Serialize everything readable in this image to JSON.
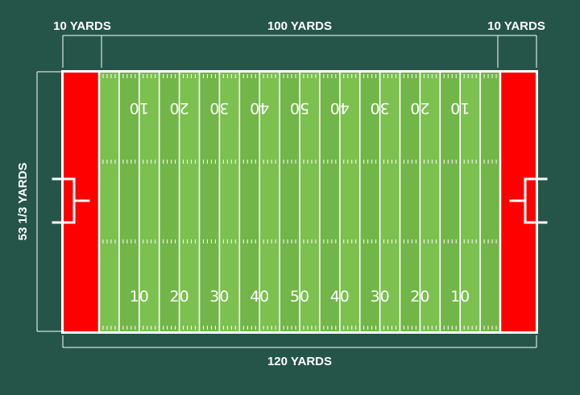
{
  "dimensions": {
    "left_endzone_label": "10 YARDS",
    "field_of_play_label": "100 YARDS",
    "right_endzone_label": "10 YARDS",
    "total_length_label": "120 YARDS",
    "width_label": "53 1/3 YARDS"
  },
  "yard_numbers": [
    "10",
    "20",
    "30",
    "40",
    "50",
    "40",
    "30",
    "20",
    "10"
  ],
  "colors": {
    "background": "#255548",
    "turf": "#7cc050",
    "turf_stripe": "#72b548",
    "endzone": "#ff0000",
    "lines": "#ffffff"
  }
}
